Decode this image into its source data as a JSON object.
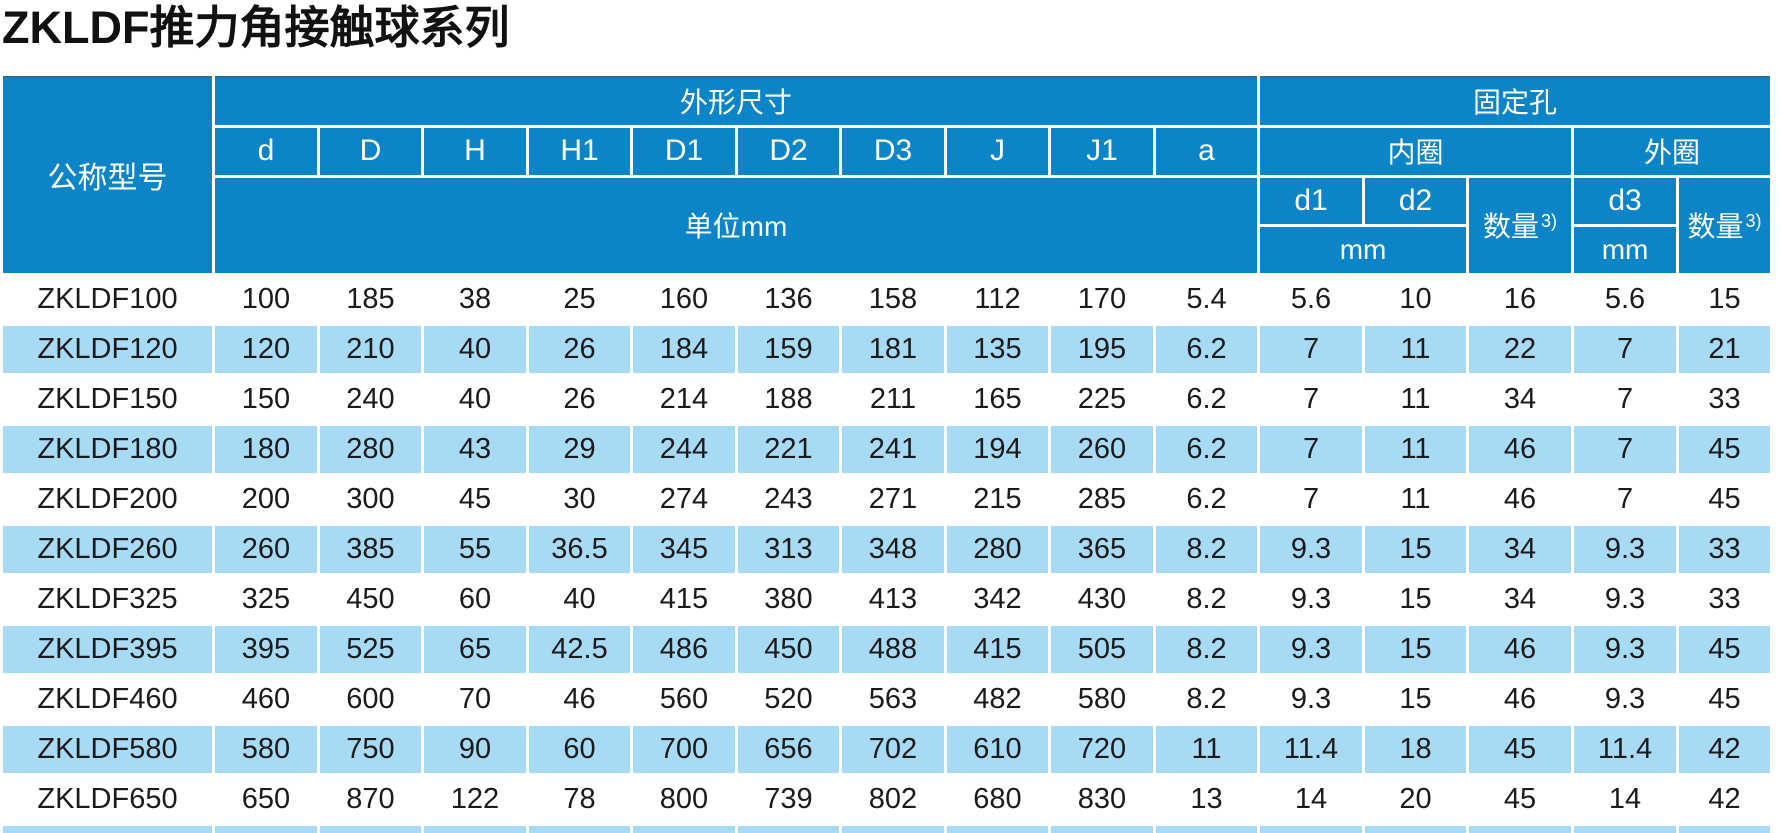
{
  "title": "ZKLDF推力角接触球系列",
  "table": {
    "model_header": "公称型号",
    "dimensions_group": "外形尺寸",
    "fixing_holes_group": "固定孔",
    "dim_columns": [
      "d",
      "D",
      "H",
      "H1",
      "D1",
      "D2",
      "D3",
      "J",
      "J1",
      "a"
    ],
    "unit_label": "单位mm",
    "inner_ring": "内圈",
    "outer_ring": "外圈",
    "d1_label": "d1",
    "d2_label": "d2",
    "d3_label": "d3",
    "qty_label": "数量",
    "qty_note_ref": "3)",
    "mm_label": "mm",
    "rows": [
      {
        "model": "ZKLDF100",
        "values": [
          "100",
          "185",
          "38",
          "25",
          "160",
          "136",
          "158",
          "112",
          "170",
          "5.4",
          "5.6",
          "10",
          "16",
          "5.6",
          "15"
        ]
      },
      {
        "model": "ZKLDF120",
        "values": [
          "120",
          "210",
          "40",
          "26",
          "184",
          "159",
          "181",
          "135",
          "195",
          "6.2",
          "7",
          "11",
          "22",
          "7",
          "21"
        ]
      },
      {
        "model": "ZKLDF150",
        "values": [
          "150",
          "240",
          "40",
          "26",
          "214",
          "188",
          "211",
          "165",
          "225",
          "6.2",
          "7",
          "11",
          "34",
          "7",
          "33"
        ]
      },
      {
        "model": "ZKLDF180",
        "values": [
          "180",
          "280",
          "43",
          "29",
          "244",
          "221",
          "241",
          "194",
          "260",
          "6.2",
          "7",
          "11",
          "46",
          "7",
          "45"
        ]
      },
      {
        "model": "ZKLDF200",
        "values": [
          "200",
          "300",
          "45",
          "30",
          "274",
          "243",
          "271",
          "215",
          "285",
          "6.2",
          "7",
          "11",
          "46",
          "7",
          "45"
        ]
      },
      {
        "model": "ZKLDF260",
        "values": [
          "260",
          "385",
          "55",
          "36.5",
          "345",
          "313",
          "348",
          "280",
          "365",
          "8.2",
          "9.3",
          "15",
          "34",
          "9.3",
          "33"
        ]
      },
      {
        "model": "ZKLDF325",
        "values": [
          "325",
          "450",
          "60",
          "40",
          "415",
          "380",
          "413",
          "342",
          "430",
          "8.2",
          "9.3",
          "15",
          "34",
          "9.3",
          "33"
        ]
      },
      {
        "model": "ZKLDF395",
        "values": [
          "395",
          "525",
          "65",
          "42.5",
          "486",
          "450",
          "488",
          "415",
          "505",
          "8.2",
          "9.3",
          "15",
          "46",
          "9.3",
          "45"
        ]
      },
      {
        "model": "ZKLDF460",
        "values": [
          "460",
          "600",
          "70",
          "46",
          "560",
          "520",
          "563",
          "482",
          "580",
          "8.2",
          "9.3",
          "15",
          "46",
          "9.3",
          "45"
        ]
      },
      {
        "model": "ZKLDF580",
        "values": [
          "580",
          "750",
          "90",
          "60",
          "700",
          "656",
          "702",
          "610",
          "720",
          "11",
          "11.4",
          "18",
          "45",
          "11.4",
          "42"
        ]
      },
      {
        "model": "ZKLDF650",
        "values": [
          "650",
          "870",
          "122",
          "78",
          "800",
          "739",
          "802",
          "680",
          "830",
          "13",
          "14",
          "20",
          "45",
          "14",
          "42"
        ]
      }
    ],
    "colors": {
      "header_blue": "#0c84c8",
      "row_stripe_blue": "#a7daf5",
      "header_top_edge": "#2b6b99",
      "text_dark": "#1b1b1b"
    }
  }
}
